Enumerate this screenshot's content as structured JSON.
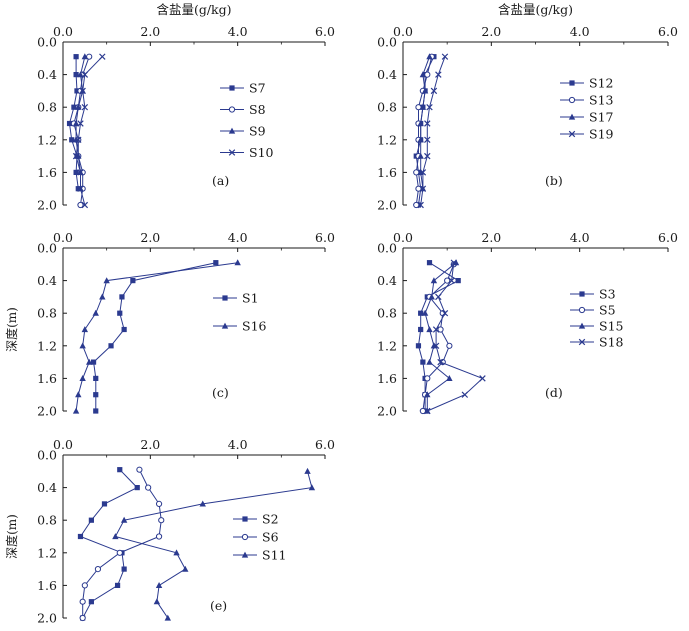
{
  "chart_data": [
    {
      "type": "line",
      "panel_label": "(a)",
      "xlabel": "含盐量(g/kg)",
      "ylabel": "",
      "xlim": [
        0,
        6
      ],
      "ylim": [
        0,
        2
      ],
      "x_ticks": [
        "0.0",
        "2.0",
        "4.0",
        "6.0"
      ],
      "y_ticks": [
        "0.0",
        "0.4",
        "0.8",
        "1.2",
        "1.6",
        "2.0"
      ],
      "legend_position": "right",
      "series": [
        {
          "name": "S7",
          "marker": "square",
          "points": [
            [
              0.3,
              0.18
            ],
            [
              0.3,
              0.4
            ],
            [
              0.32,
              0.6
            ],
            [
              0.25,
              0.8
            ],
            [
              0.15,
              1.0
            ],
            [
              0.2,
              1.2
            ],
            [
              0.32,
              1.4
            ],
            [
              0.3,
              1.6
            ],
            [
              0.35,
              1.8
            ]
          ]
        },
        {
          "name": "S8",
          "marker": "circle",
          "points": [
            [
              0.6,
              0.18
            ],
            [
              0.45,
              0.4
            ],
            [
              0.4,
              0.6
            ],
            [
              0.35,
              0.8
            ],
            [
              0.25,
              1.0
            ],
            [
              0.35,
              1.2
            ],
            [
              0.35,
              1.4
            ],
            [
              0.45,
              1.6
            ],
            [
              0.45,
              1.8
            ],
            [
              0.4,
              2.0
            ]
          ]
        },
        {
          "name": "S9",
          "marker": "triangle",
          "points": [
            [
              0.5,
              0.18
            ],
            [
              0.4,
              0.4
            ],
            [
              0.45,
              0.6
            ],
            [
              0.35,
              0.8
            ],
            [
              0.3,
              1.0
            ],
            [
              0.3,
              1.2
            ],
            [
              0.35,
              1.4
            ],
            [
              0.4,
              1.6
            ],
            [
              0.4,
              1.8
            ]
          ]
        },
        {
          "name": "S10",
          "marker": "x",
          "points": [
            [
              0.9,
              0.18
            ],
            [
              0.5,
              0.4
            ],
            [
              0.45,
              0.6
            ],
            [
              0.5,
              0.8
            ],
            [
              0.4,
              1.0
            ],
            [
              0.35,
              1.2
            ],
            [
              0.3,
              1.4
            ],
            [
              0.4,
              1.6
            ],
            [
              0.4,
              1.8
            ],
            [
              0.5,
              2.0
            ]
          ]
        }
      ]
    },
    {
      "type": "line",
      "panel_label": "(b)",
      "xlabel": "含盐量(g/kg)",
      "ylabel": "",
      "xlim": [
        0,
        6
      ],
      "ylim": [
        0,
        2
      ],
      "x_ticks": [
        "0.0",
        "2.0",
        "4.0",
        "6.0"
      ],
      "y_ticks": [
        "0.0",
        "0.4",
        "0.8",
        "1.2",
        "1.6",
        "2.0"
      ],
      "legend_position": "right",
      "series": [
        {
          "name": "S12",
          "marker": "square",
          "points": [
            [
              0.7,
              0.18
            ],
            [
              0.5,
              0.4
            ],
            [
              0.5,
              0.6
            ],
            [
              0.45,
              0.8
            ],
            [
              0.4,
              1.0
            ],
            [
              0.4,
              1.2
            ],
            [
              0.3,
              1.4
            ],
            [
              0.35,
              1.6
            ],
            [
              0.4,
              1.8
            ],
            [
              0.35,
              2.0
            ]
          ]
        },
        {
          "name": "S13",
          "marker": "circle",
          "points": [
            [
              0.65,
              0.18
            ],
            [
              0.55,
              0.4
            ],
            [
              0.45,
              0.6
            ],
            [
              0.35,
              0.8
            ],
            [
              0.35,
              1.0
            ],
            [
              0.35,
              1.2
            ],
            [
              0.35,
              1.4
            ],
            [
              0.3,
              1.6
            ],
            [
              0.35,
              1.8
            ],
            [
              0.3,
              2.0
            ]
          ]
        },
        {
          "name": "S17",
          "marker": "triangle",
          "points": [
            [
              0.6,
              0.18
            ],
            [
              0.45,
              0.4
            ],
            [
              0.5,
              0.6
            ],
            [
              0.45,
              0.8
            ],
            [
              0.4,
              1.0
            ],
            [
              0.4,
              1.2
            ],
            [
              0.4,
              1.4
            ],
            [
              0.4,
              1.6
            ],
            [
              0.45,
              1.8
            ]
          ]
        },
        {
          "name": "S19",
          "marker": "x",
          "points": [
            [
              0.95,
              0.18
            ],
            [
              0.8,
              0.4
            ],
            [
              0.7,
              0.6
            ],
            [
              0.6,
              0.8
            ],
            [
              0.55,
              1.0
            ],
            [
              0.55,
              1.2
            ],
            [
              0.55,
              1.4
            ],
            [
              0.45,
              1.6
            ],
            [
              0.45,
              1.8
            ],
            [
              0.4,
              2.0
            ]
          ]
        }
      ]
    },
    {
      "type": "line",
      "panel_label": "(c)",
      "xlabel": "",
      "ylabel": "深度(m)",
      "xlim": [
        0,
        6
      ],
      "ylim": [
        0,
        2
      ],
      "x_ticks": [
        "0.0",
        "2.0",
        "4.0",
        "6.0"
      ],
      "y_ticks": [
        "0.0",
        "0.4",
        "0.8",
        "1.2",
        "1.6",
        "2.0"
      ],
      "legend_position": "right",
      "series": [
        {
          "name": "S1",
          "marker": "square",
          "points": [
            [
              3.5,
              0.18
            ],
            [
              1.6,
              0.4
            ],
            [
              1.35,
              0.6
            ],
            [
              1.3,
              0.8
            ],
            [
              1.4,
              1.0
            ],
            [
              1.1,
              1.2
            ],
            [
              0.7,
              1.4
            ],
            [
              0.75,
              1.6
            ],
            [
              0.75,
              1.8
            ],
            [
              0.75,
              2.0
            ]
          ]
        },
        {
          "name": "S16",
          "marker": "triangle",
          "points": [
            [
              4.0,
              0.18
            ],
            [
              1.0,
              0.4
            ],
            [
              0.9,
              0.6
            ],
            [
              0.75,
              0.8
            ],
            [
              0.5,
              1.0
            ],
            [
              0.45,
              1.2
            ],
            [
              0.6,
              1.4
            ],
            [
              0.45,
              1.6
            ],
            [
              0.35,
              1.8
            ],
            [
              0.3,
              2.0
            ]
          ]
        }
      ]
    },
    {
      "type": "line",
      "panel_label": "(d)",
      "xlabel": "",
      "ylabel": "",
      "xlim": [
        0,
        6
      ],
      "ylim": [
        0,
        2
      ],
      "x_ticks": [
        "0.0",
        "2.0",
        "4.0",
        "6.0"
      ],
      "y_ticks": [
        "0.0",
        "0.4",
        "0.8",
        "1.2",
        "1.6",
        "2.0"
      ],
      "legend_position": "right",
      "series": [
        {
          "name": "S3",
          "marker": "square",
          "points": [
            [
              0.6,
              0.18
            ],
            [
              1.25,
              0.4
            ],
            [
              0.55,
              0.6
            ],
            [
              0.4,
              0.8
            ],
            [
              0.4,
              1.0
            ],
            [
              0.35,
              1.2
            ],
            [
              0.45,
              1.4
            ],
            [
              0.5,
              1.6
            ],
            [
              0.5,
              1.8
            ],
            [
              0.5,
              2.0
            ]
          ]
        },
        {
          "name": "S5",
          "marker": "circle",
          "points": [
            [
              1.15,
              0.2
            ],
            [
              1.0,
              0.4
            ],
            [
              0.6,
              0.6
            ],
            [
              0.9,
              0.8
            ],
            [
              0.85,
              1.0
            ],
            [
              1.05,
              1.2
            ],
            [
              0.9,
              1.4
            ],
            [
              0.55,
              1.6
            ],
            [
              0.5,
              1.8
            ],
            [
              0.45,
              2.0
            ]
          ]
        },
        {
          "name": "S15",
          "marker": "triangle",
          "points": [
            [
              1.2,
              0.18
            ],
            [
              0.7,
              0.4
            ],
            [
              0.65,
              0.6
            ],
            [
              0.5,
              0.8
            ],
            [
              0.6,
              1.0
            ],
            [
              0.7,
              1.2
            ],
            [
              0.6,
              1.4
            ],
            [
              1.05,
              1.6
            ],
            [
              0.55,
              1.8
            ],
            [
              0.55,
              2.0
            ]
          ]
        },
        {
          "name": "S18",
          "marker": "x",
          "points": [
            [
              1.15,
              0.18
            ],
            [
              1.1,
              0.4
            ],
            [
              0.8,
              0.6
            ],
            [
              0.95,
              0.8
            ],
            [
              0.75,
              1.0
            ],
            [
              0.75,
              1.2
            ],
            [
              0.85,
              1.4
            ],
            [
              1.8,
              1.6
            ],
            [
              1.4,
              1.8
            ],
            [
              0.55,
              2.0
            ]
          ]
        }
      ]
    },
    {
      "type": "line",
      "panel_label": "(e)",
      "xlabel": "",
      "ylabel": "深度(m)",
      "xlim": [
        0,
        6
      ],
      "ylim": [
        0,
        2
      ],
      "x_ticks": [
        "0.0",
        "2.0",
        "4.0",
        "6.0"
      ],
      "y_ticks": [
        "0.0",
        "0.4",
        "0.8",
        "1.2",
        "1.6",
        "2.0"
      ],
      "legend_position": "right",
      "series": [
        {
          "name": "S2",
          "marker": "square",
          "points": [
            [
              1.3,
              0.18
            ],
            [
              1.7,
              0.4
            ],
            [
              0.95,
              0.6
            ],
            [
              0.65,
              0.8
            ],
            [
              0.4,
              1.0
            ],
            [
              1.35,
              1.2
            ],
            [
              1.4,
              1.4
            ],
            [
              1.25,
              1.6
            ],
            [
              0.65,
              1.8
            ],
            [
              0.45,
              2.0
            ]
          ]
        },
        {
          "name": "S6",
          "marker": "circle",
          "points": [
            [
              1.75,
              0.18
            ],
            [
              1.95,
              0.4
            ],
            [
              2.2,
              0.6
            ],
            [
              2.25,
              0.8
            ],
            [
              2.2,
              1.0
            ],
            [
              1.3,
              1.2
            ],
            [
              0.8,
              1.4
            ],
            [
              0.5,
              1.6
            ],
            [
              0.45,
              1.8
            ],
            [
              0.45,
              2.0
            ]
          ]
        },
        {
          "name": "S11",
          "marker": "triangle",
          "points": [
            [
              5.6,
              0.2
            ],
            [
              5.7,
              0.4
            ],
            [
              3.2,
              0.6
            ],
            [
              1.4,
              0.8
            ],
            [
              1.2,
              1.0
            ],
            [
              2.6,
              1.2
            ],
            [
              2.8,
              1.4
            ],
            [
              2.2,
              1.6
            ],
            [
              2.15,
              1.8
            ],
            [
              2.4,
              2.0
            ]
          ]
        }
      ]
    }
  ]
}
